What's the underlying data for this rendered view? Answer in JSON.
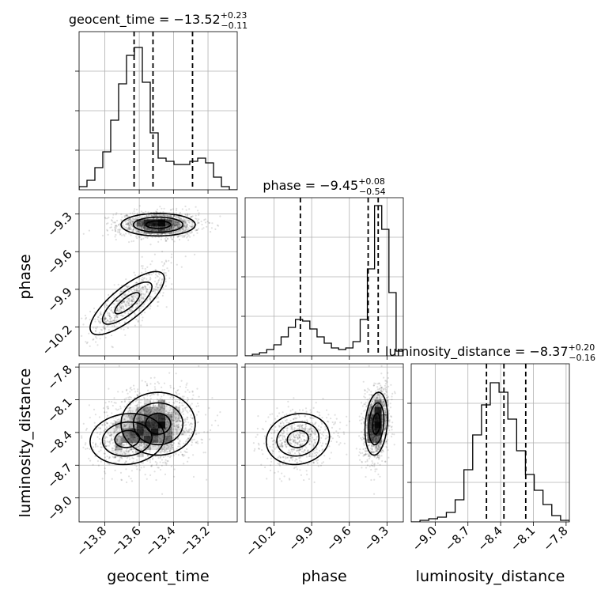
{
  "chart_data": {
    "type": "corner",
    "parameters": [
      "geocent_time",
      "phase",
      "luminosity_distance"
    ],
    "axis_labels": {
      "geocent_time": "geocent_time",
      "phase": "phase",
      "luminosity_distance": "luminosity_distance"
    },
    "titles": [
      {
        "param": "geocent_time",
        "prefix": "geocent_time = ",
        "median": "−13.52",
        "plus": "+0.23",
        "minus": "−0.11"
      },
      {
        "param": "phase",
        "prefix": "phase = ",
        "median": "−9.45",
        "plus": "+0.08",
        "minus": "−0.54"
      },
      {
        "param": "luminosity_distance",
        "prefix": "luminosity_distance = ",
        "median": "−8.37",
        "plus": "+0.20",
        "minus": "−0.16"
      }
    ],
    "ranges": {
      "geocent_time": [
        -13.95,
        -13.03
      ],
      "phase": [
        -10.43,
        -9.17
      ],
      "luminosity_distance": [
        -9.22,
        -7.77
      ]
    },
    "ticks": {
      "geocent_time": [
        -13.8,
        -13.6,
        -13.4,
        -13.2
      ],
      "phase": [
        -10.2,
        -9.9,
        -9.6,
        -9.3
      ],
      "luminosity_distance": [
        -9.0,
        -8.7,
        -8.4,
        -8.1,
        -7.8
      ]
    },
    "tick_labels": {
      "geocent_time": [
        "−13.8",
        "−13.6",
        "−13.4",
        "−13.2"
      ],
      "phase": [
        "−10.2",
        "−9.9",
        "−9.6",
        "−9.3"
      ],
      "luminosity_distance": [
        "−9.0",
        "−8.7",
        "−8.4",
        "−8.1",
        "−7.8"
      ]
    },
    "quantiles": {
      "geocent_time": [
        -13.63,
        -13.52,
        -13.29
      ],
      "phase": [
        -9.99,
        -9.45,
        -9.37
      ],
      "luminosity_distance": [
        -8.53,
        -8.37,
        -8.17
      ]
    },
    "histograms": {
      "geocent_time": [
        0.02,
        0.06,
        0.14,
        0.24,
        0.44,
        0.67,
        0.85,
        0.9,
        0.68,
        0.36,
        0.2,
        0.18,
        0.16,
        0.16,
        0.18,
        0.2,
        0.17,
        0.08,
        0.02,
        0.0
      ],
      "phase": [
        0.0,
        0.01,
        0.02,
        0.04,
        0.07,
        0.12,
        0.18,
        0.23,
        0.22,
        0.17,
        0.12,
        0.08,
        0.05,
        0.04,
        0.05,
        0.09,
        0.23,
        0.55,
        0.95,
        0.8,
        0.4,
        0.03
      ],
      "luminosity_distance": [
        0.0,
        0.01,
        0.02,
        0.03,
        0.06,
        0.14,
        0.33,
        0.55,
        0.74,
        0.88,
        0.82,
        0.65,
        0.45,
        0.3,
        0.2,
        0.11,
        0.04,
        0.01
      ]
    },
    "grid": true,
    "posterior_modes": [
      {
        "n": 2500,
        "mean": [
          -13.49,
          -9.385,
          -8.32
        ],
        "sd": [
          0.12,
          0.05,
          0.16
        ],
        "corr": [
          [
            1,
            0,
            0
          ],
          [
            0,
            1,
            0.2
          ],
          [
            0,
            0.2,
            1
          ]
        ]
      },
      {
        "n": 1300,
        "mean": [
          -13.67,
          -10.01,
          -8.46
        ],
        "sd": [
          0.12,
          0.14,
          0.13
        ],
        "corr": [
          [
            1,
            0.78,
            0.1
          ],
          [
            0.78,
            1,
            0.1
          ],
          [
            0.1,
            0.1,
            1
          ]
        ]
      }
    ]
  }
}
